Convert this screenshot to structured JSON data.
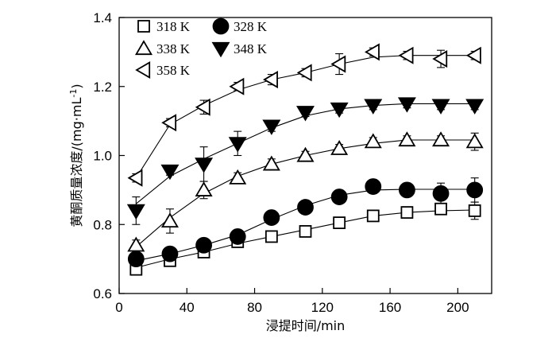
{
  "chart_data": {
    "type": "scatter",
    "xlabel": "浸提时间/min",
    "ylabel": "黄酮质量浓度/(mg·mL",
    "ylabel_sup": "-1",
    "ylabel_close": ")",
    "xlim": [
      0,
      220
    ],
    "ylim": [
      0.6,
      1.4
    ],
    "x_ticks": [
      0,
      40,
      80,
      120,
      160,
      200
    ],
    "y_ticks": [
      0.6,
      0.8,
      1.0,
      1.2,
      1.4
    ],
    "x_tick_labels": [
      "0",
      "40",
      "80",
      "120",
      "160",
      "200"
    ],
    "y_tick_labels": [
      "0.6",
      "0.8",
      "1.0",
      "1.2",
      "1.4"
    ],
    "x": [
      10,
      30,
      50,
      70,
      90,
      110,
      130,
      150,
      170,
      190,
      210
    ],
    "legend_position": "top-left",
    "series": [
      {
        "name": "318 K",
        "marker": "square-open",
        "values": [
          0.67,
          0.695,
          0.72,
          0.75,
          0.765,
          0.78,
          0.805,
          0.825,
          0.835,
          0.845,
          0.84
        ],
        "errors": [
          0.012,
          0.01,
          0.012,
          0.012,
          0.01,
          0.012,
          0.012,
          0.012,
          0.015,
          0.012,
          0.025
        ]
      },
      {
        "name": "328 K",
        "marker": "circle-filled",
        "values": [
          0.7,
          0.715,
          0.74,
          0.765,
          0.82,
          0.85,
          0.88,
          0.91,
          0.9,
          0.89,
          0.9
        ],
        "errors": [
          0.012,
          0.012,
          0.015,
          0.012,
          0.012,
          0.012,
          0.012,
          0.02,
          0.02,
          0.03,
          0.035
        ]
      },
      {
        "name": "338 K",
        "marker": "triangle-up-open",
        "values": [
          0.74,
          0.81,
          0.9,
          0.935,
          0.975,
          1.0,
          1.02,
          1.04,
          1.045,
          1.045,
          1.04
        ],
        "errors": [
          0.015,
          0.035,
          0.025,
          0.015,
          0.015,
          0.012,
          0.012,
          0.012,
          0.012,
          0.012,
          0.025
        ]
      },
      {
        "name": "348 K",
        "marker": "triangle-down-filled",
        "values": [
          0.84,
          0.955,
          0.975,
          1.035,
          1.085,
          1.125,
          1.135,
          1.145,
          1.15,
          1.145,
          1.145
        ],
        "errors": [
          0.04,
          0.012,
          0.05,
          0.035,
          0.015,
          0.012,
          0.012,
          0.012,
          0.012,
          0.012,
          0.012
        ]
      },
      {
        "name": "358 K",
        "marker": "triangle-left-open",
        "values": [
          0.935,
          1.095,
          1.14,
          1.2,
          1.22,
          1.24,
          1.265,
          1.3,
          1.29,
          1.28,
          1.29
        ],
        "errors": [
          0.012,
          0.012,
          0.02,
          0.012,
          0.015,
          0.012,
          0.03,
          0.012,
          0.012,
          0.025,
          0.012
        ]
      }
    ],
    "fit_curves": [
      [
        0.675,
        0.7,
        0.72,
        0.745,
        0.765,
        0.785,
        0.805,
        0.825,
        0.835,
        0.84,
        0.842
      ],
      [
        0.695,
        0.715,
        0.74,
        0.77,
        0.815,
        0.855,
        0.885,
        0.9,
        0.902,
        0.902,
        0.902
      ],
      [
        0.735,
        0.82,
        0.89,
        0.94,
        0.975,
        1.0,
        1.02,
        1.035,
        1.045,
        1.045,
        1.045
      ],
      [
        0.86,
        0.94,
        0.99,
        1.035,
        1.08,
        1.115,
        1.135,
        1.145,
        1.15,
        1.15,
        1.15
      ],
      [
        0.935,
        1.09,
        1.145,
        1.19,
        1.22,
        1.24,
        1.265,
        1.285,
        1.29,
        1.29,
        1.29
      ]
    ]
  }
}
